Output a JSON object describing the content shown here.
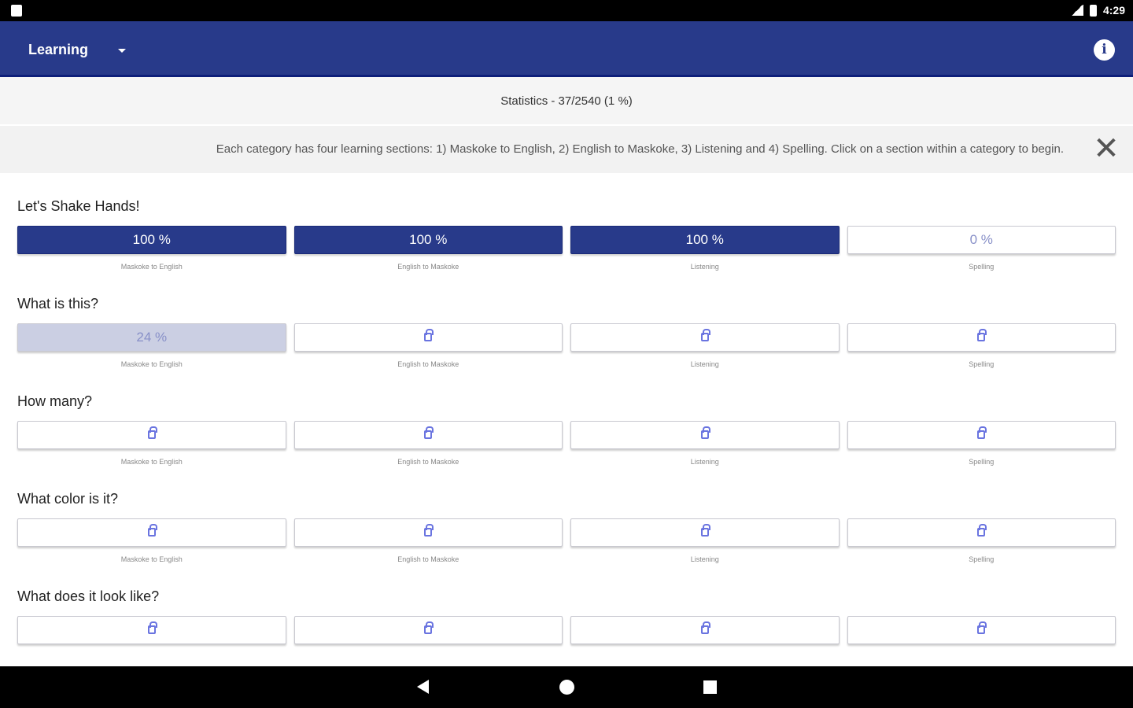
{
  "status_bar": {
    "time": "4:29"
  },
  "app_bar": {
    "title": "Learning",
    "info_icon": "i"
  },
  "statistics": "Statistics - 37/2540 (1 %)",
  "notice": {
    "text": "Each category has four learning sections: 1) Maskoke to English, 2) English to Maskoke, 3) Listening and 4) Spelling. Click on a section within a category to begin.",
    "close_icon": "✕"
  },
  "colors": {
    "primary": "#283a8a",
    "lock": "#6a74e0"
  },
  "categories": [
    {
      "title": "Let's Shake Hands!",
      "sections": [
        {
          "state": "full",
          "progress": 100,
          "value": "100 %",
          "label": "Maskoke to English"
        },
        {
          "state": "full",
          "progress": 100,
          "value": "100 %",
          "label": "English to Maskoke"
        },
        {
          "state": "full",
          "progress": 100,
          "value": "100 %",
          "label": "Listening"
        },
        {
          "state": "open",
          "progress": 0,
          "value": "0 %",
          "label": "Spelling"
        }
      ]
    },
    {
      "title": "What is this?",
      "sections": [
        {
          "state": "partial",
          "progress": 24,
          "value": "24 %",
          "label": "Maskoke to English"
        },
        {
          "state": "locked",
          "label": "English to Maskoke"
        },
        {
          "state": "locked",
          "label": "Listening"
        },
        {
          "state": "locked",
          "label": "Spelling"
        }
      ]
    },
    {
      "title": "How many?",
      "sections": [
        {
          "state": "locked",
          "label": "Maskoke to English"
        },
        {
          "state": "locked",
          "label": "English to Maskoke"
        },
        {
          "state": "locked",
          "label": "Listening"
        },
        {
          "state": "locked",
          "label": "Spelling"
        }
      ]
    },
    {
      "title": "What color is it?",
      "sections": [
        {
          "state": "locked",
          "label": "Maskoke to English"
        },
        {
          "state": "locked",
          "label": "English to Maskoke"
        },
        {
          "state": "locked",
          "label": "Listening"
        },
        {
          "state": "locked",
          "label": "Spelling"
        }
      ]
    },
    {
      "title": "What does it look like?",
      "sections": [
        {
          "state": "locked"
        },
        {
          "state": "locked"
        },
        {
          "state": "locked"
        },
        {
          "state": "locked"
        }
      ]
    }
  ]
}
